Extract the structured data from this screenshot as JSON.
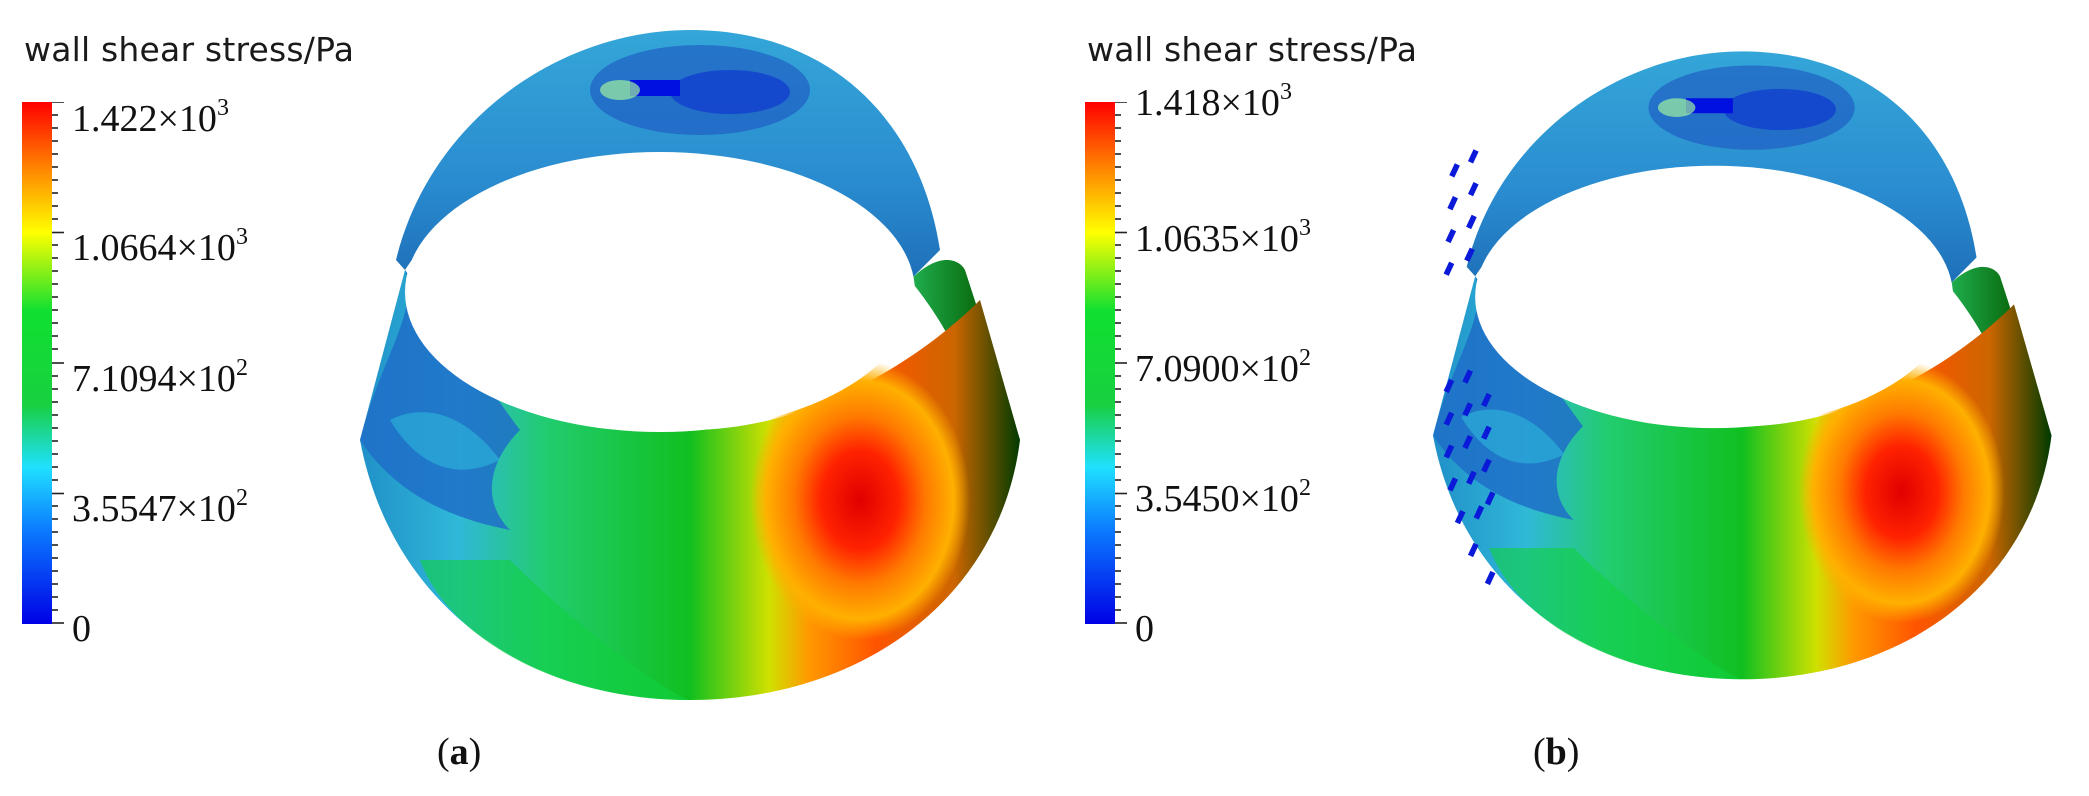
{
  "legend_title": "wall shear stress/Pa",
  "colormap": [
    "#0000e6",
    "#0b7bff",
    "#20e0ff",
    "#18d040",
    "#10e030",
    "#ffff00",
    "#ff8800",
    "#ff0000"
  ],
  "panels": [
    {
      "id": "a",
      "caption_letter": "a",
      "ticks": [
        {
          "mantissa": "1.422×10",
          "exp": "3"
        },
        {
          "mantissa": "1.0664×10",
          "exp": "3"
        },
        {
          "mantissa": "7.1094×10",
          "exp": "2"
        },
        {
          "mantissa": "3.5547×10",
          "exp": "2"
        },
        {
          "mantissa": "0",
          "exp": ""
        }
      ],
      "max_value": 1422,
      "has_holes": false
    },
    {
      "id": "b",
      "caption_letter": "b",
      "ticks": [
        {
          "mantissa": "1.418×10",
          "exp": "3"
        },
        {
          "mantissa": "1.0635×10",
          "exp": "3"
        },
        {
          "mantissa": "7.0900×10",
          "exp": "2"
        },
        {
          "mantissa": "3.5450×10",
          "exp": "2"
        },
        {
          "mantissa": "0",
          "exp": ""
        }
      ],
      "max_value": 1418,
      "has_holes": true
    }
  ]
}
